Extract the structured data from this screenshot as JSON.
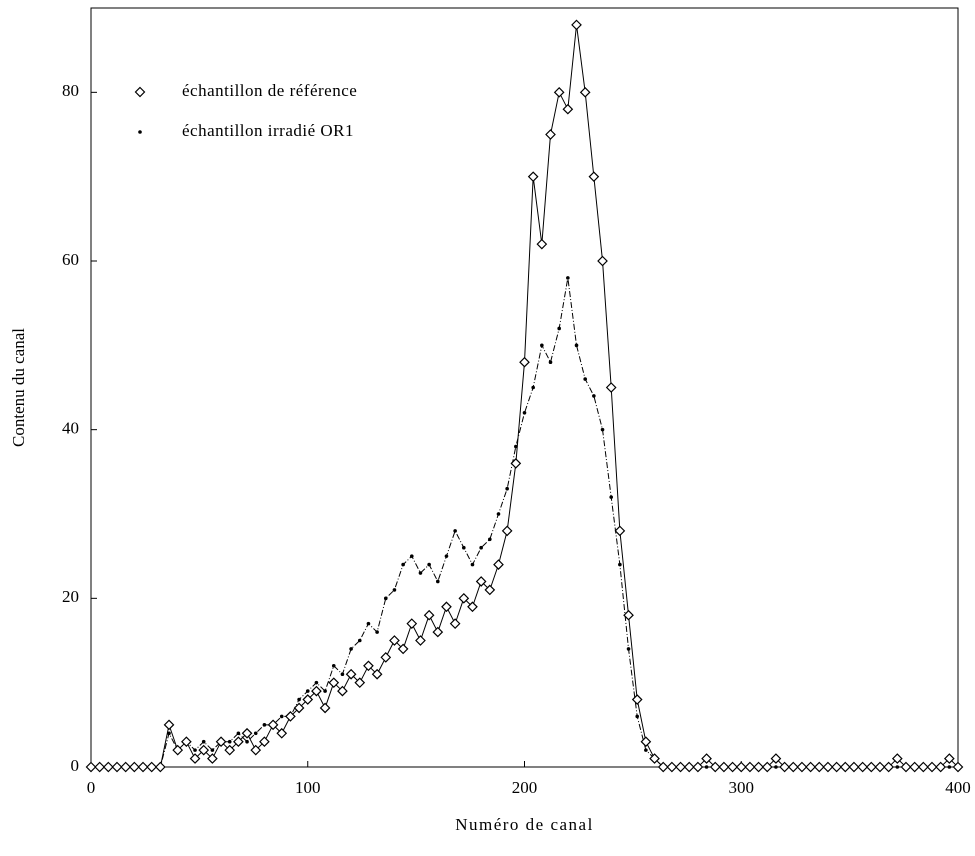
{
  "chart_data": {
    "type": "line",
    "xlabel": "Numéro de canal",
    "ylabel": "Contenu du canal",
    "x": [
      0,
      4,
      8,
      12,
      16,
      20,
      24,
      28,
      32,
      36,
      40,
      44,
      48,
      52,
      56,
      60,
      64,
      68,
      72,
      76,
      80,
      84,
      88,
      92,
      96,
      100,
      104,
      108,
      112,
      116,
      120,
      124,
      128,
      132,
      136,
      140,
      144,
      148,
      152,
      156,
      160,
      164,
      168,
      172,
      176,
      180,
      184,
      188,
      192,
      196,
      200,
      204,
      208,
      212,
      216,
      220,
      224,
      228,
      232,
      236,
      240,
      244,
      248,
      252,
      256,
      260,
      264,
      268,
      272,
      276,
      280,
      284,
      288,
      292,
      296,
      300,
      304,
      308,
      312,
      316,
      320,
      324,
      328,
      332,
      336,
      340,
      344,
      348,
      352,
      356,
      360,
      364,
      368,
      372,
      376,
      380,
      384,
      388,
      392,
      396,
      400
    ],
    "series": [
      {
        "name": "échantillon de référence",
        "color": "#000000",
        "marker": "diamond",
        "values": [
          0,
          0,
          0,
          0,
          0,
          0,
          0,
          0,
          0,
          5,
          2,
          3,
          1,
          2,
          1,
          3,
          2,
          3,
          4,
          2,
          3,
          5,
          4,
          6,
          7,
          8,
          9,
          7,
          10,
          9,
          11,
          10,
          12,
          11,
          13,
          15,
          14,
          17,
          15,
          18,
          16,
          19,
          17,
          20,
          19,
          22,
          21,
          24,
          28,
          36,
          48,
          70,
          62,
          75,
          80,
          78,
          88,
          80,
          70,
          60,
          45,
          28,
          18,
          8,
          3,
          1,
          0,
          0,
          0,
          0,
          0,
          1,
          0,
          0,
          0,
          0,
          0,
          0,
          0,
          1,
          0,
          0,
          0,
          0,
          0,
          0,
          0,
          0,
          0,
          0,
          0,
          0,
          0,
          1,
          0,
          0,
          0,
          0,
          0,
          1,
          0
        ]
      },
      {
        "name": "échantillon irradié OR1",
        "color": "#000000",
        "marker": "dot",
        "values": [
          0,
          0,
          0,
          0,
          0,
          0,
          0,
          0,
          0,
          4,
          2,
          3,
          2,
          3,
          2,
          3,
          3,
          4,
          3,
          4,
          5,
          5,
          6,
          6,
          8,
          9,
          10,
          9,
          12,
          11,
          14,
          15,
          17,
          16,
          20,
          21,
          24,
          25,
          23,
          24,
          22,
          25,
          28,
          26,
          24,
          26,
          27,
          30,
          33,
          38,
          42,
          45,
          50,
          48,
          52,
          58,
          50,
          46,
          44,
          40,
          32,
          24,
          14,
          6,
          2,
          1,
          0,
          0,
          0,
          0,
          0,
          0,
          0,
          0,
          0,
          0,
          0,
          0,
          0,
          0,
          0,
          0,
          0,
          0,
          0,
          0,
          0,
          0,
          0,
          0,
          0,
          0,
          0,
          0,
          0,
          0,
          0,
          0,
          0,
          0,
          0
        ]
      }
    ],
    "xlim": [
      0,
      400
    ],
    "xticks": [
      0,
      100,
      200,
      300,
      400
    ],
    "ylim": [
      0,
      90
    ],
    "yticks": [
      0,
      20,
      40,
      60,
      80
    ],
    "legend": "upper-left"
  }
}
